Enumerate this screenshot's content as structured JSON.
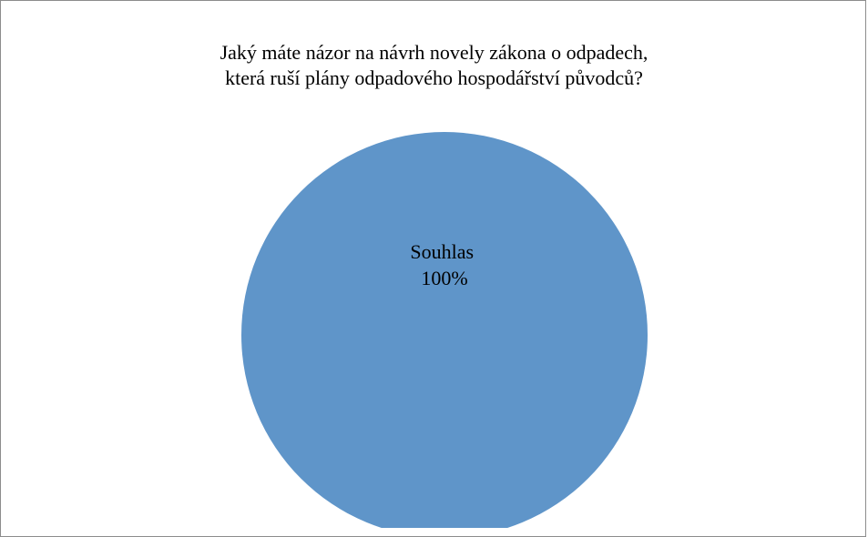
{
  "chart_data": {
    "type": "pie",
    "title_lines": [
      "Jaký máte názor na návrh novely zákona o odpadech,",
      "která ruší plány odpadového hospodářství původců?"
    ],
    "slices": [
      {
        "label": "Souhlas",
        "value": 100,
        "percent_label": "100%",
        "color": "#5f95c9"
      }
    ],
    "legend": "none"
  }
}
